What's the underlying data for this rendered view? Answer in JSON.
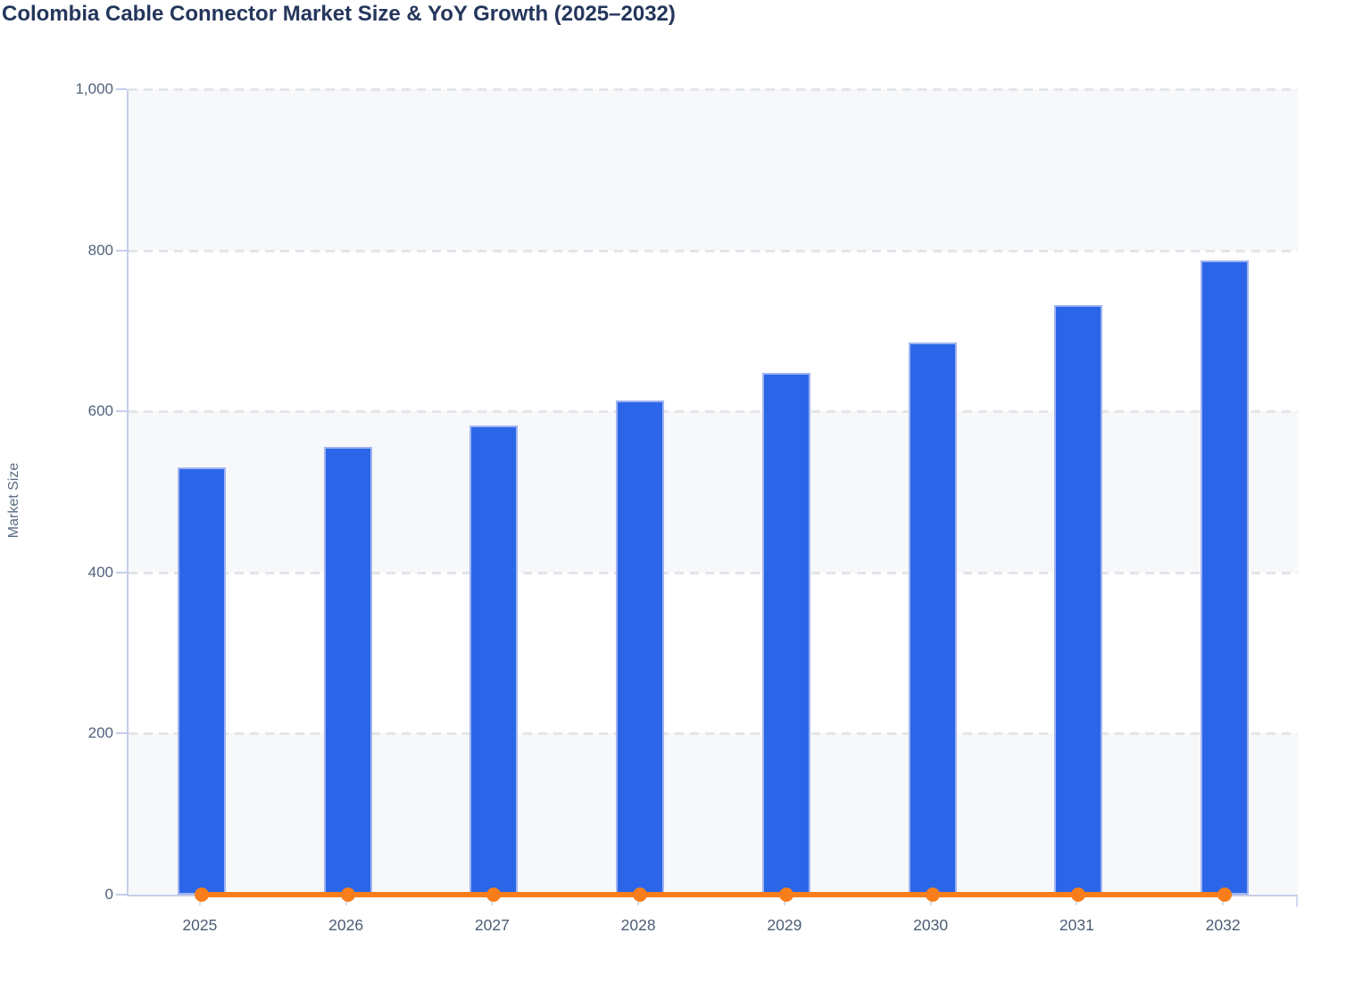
{
  "title": "Colombia Cable Connector Market Size & YoY Growth (2025–2032)",
  "colors": {
    "bar_fill": "#2b66e8",
    "bar_border": "#a0b4f0",
    "line": "#f87d1b",
    "title_text": "#24365c",
    "axis_line": "#c6cfe9",
    "gridline": "#e3e5e9",
    "tick_label": "#52627b",
    "band_shaded": "#f7f8fa"
  },
  "chart_data": {
    "type": "bar",
    "title": "Colombia Cable Connector Market Size & YoY Growth (2025–2032)",
    "xlabel": "",
    "ylabel": "Market Size",
    "categories": [
      "2025",
      "2026",
      "2027",
      "2028",
      "2029",
      "2030",
      "2031",
      "2032"
    ],
    "series": [
      {
        "name": "Market Size",
        "type": "bar",
        "color": "#2b66e8",
        "values": [
          530,
          556,
          583,
          614,
          648,
          686,
          732,
          787
        ]
      },
      {
        "name": "YoY Growth",
        "type": "line",
        "color": "#f87d1b",
        "values": [
          0,
          0,
          0,
          0,
          0,
          0,
          0,
          0
        ],
        "rendered_note": "line with circular markers drawn flat at ~0 on the shared 0–1000 axis"
      }
    ],
    "ylim": [
      0,
      1000
    ],
    "yticks": [
      0,
      200,
      400,
      600,
      800,
      1000
    ],
    "ytick_labels": [
      "0",
      "200",
      "400",
      "600",
      "800",
      "1,000"
    ],
    "grid": "horizontal dashed gridlines at each y tick",
    "plot_background": "alternating horizontal bands (shaded 0–200, 400–600, 800–1000)",
    "legend": "none"
  }
}
